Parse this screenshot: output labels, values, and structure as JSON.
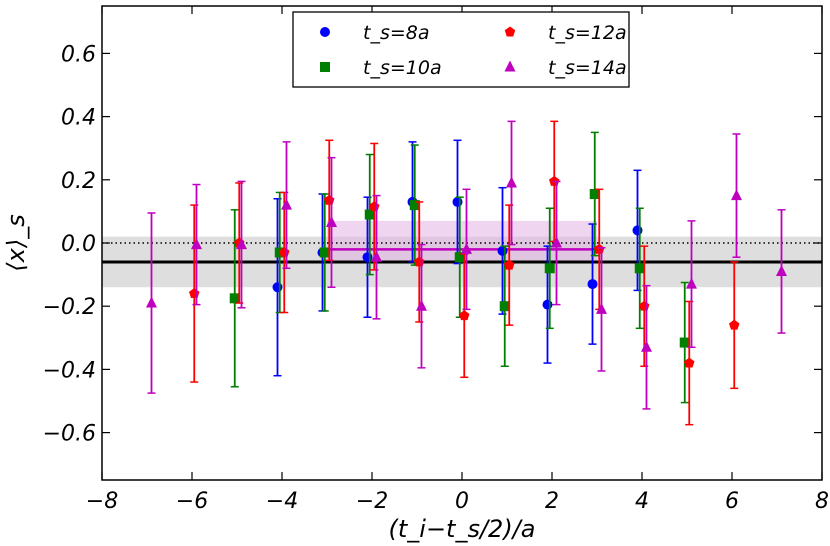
{
  "chart_data": {
    "type": "scatter",
    "title": "",
    "xlabel": "(t_i−t_s/2)/a",
    "ylabel": "⟨x⟩_s",
    "xlim": [
      -8,
      8
    ],
    "ylim": [
      -0.75,
      0.75
    ],
    "xticks": [
      -8,
      -6,
      -4,
      -2,
      0,
      2,
      4,
      6,
      8
    ],
    "xtick_labels": [
      "−8",
      "−6",
      "−4",
      "−2",
      "0",
      "2",
      "4",
      "6",
      "8"
    ],
    "yticks": [
      -0.6,
      -0.4,
      -0.2,
      0.0,
      0.2,
      0.4,
      0.6
    ],
    "ytick_labels": [
      "−0.6",
      "−0.4",
      "−0.2",
      "0.0",
      "0.2",
      "0.4",
      "0.6"
    ],
    "legend_position": "top-center",
    "reference_lines": [
      {
        "name": "zero",
        "y": 0.0,
        "style": "dotted"
      },
      {
        "name": "global-fit",
        "y": -0.06,
        "band": [
          -0.14,
          0.02
        ],
        "style": "solid"
      }
    ],
    "fit_band": {
      "name": "ts14-fit",
      "x": [
        -3,
        3
      ],
      "y": -0.02,
      "band": [
        -0.06,
        0.07
      ]
    },
    "series": [
      {
        "name": "ts8",
        "label": "t_s=8a",
        "color": "#0000ff",
        "marker": "circle",
        "x": [
          -4,
          -3,
          -2,
          -1,
          0,
          1,
          2,
          3,
          4
        ],
        "y": [
          -0.14,
          -0.03,
          -0.045,
          0.13,
          0.13,
          -0.025,
          -0.195,
          -0.13,
          0.04
        ],
        "yerr": [
          0.28,
          0.185,
          0.19,
          0.19,
          0.195,
          0.2,
          0.185,
          0.19,
          0.19
        ]
      },
      {
        "name": "ts10",
        "label": "t_s=10a",
        "color": "#007f00",
        "marker": "square",
        "x": [
          -5,
          -4,
          -3,
          -2,
          -1,
          0,
          1,
          2,
          3,
          4,
          5
        ],
        "y": [
          -0.175,
          -0.03,
          -0.03,
          0.09,
          0.12,
          -0.045,
          -0.2,
          -0.08,
          0.155,
          -0.08,
          -0.315
        ],
        "yerr": [
          0.28,
          0.19,
          0.185,
          0.19,
          0.19,
          0.19,
          0.19,
          0.19,
          0.195,
          0.19,
          0.19
        ]
      },
      {
        "name": "ts12",
        "label": "t_s=12a",
        "color": "#ff0000",
        "marker": "pentagon",
        "x": [
          -6,
          -5,
          -4,
          -3,
          -2,
          -1,
          0,
          1,
          2,
          3,
          4,
          5,
          6
        ],
        "y": [
          -0.16,
          0.0,
          -0.03,
          0.135,
          0.115,
          -0.06,
          -0.23,
          -0.07,
          0.195,
          -0.02,
          -0.2,
          -0.38,
          -0.26
        ],
        "yerr": [
          0.28,
          0.19,
          0.19,
          0.19,
          0.2,
          0.19,
          0.195,
          0.19,
          0.19,
          0.19,
          0.19,
          0.195,
          0.2
        ]
      },
      {
        "name": "ts14",
        "label": "t_s=14a",
        "color": "#bf00bf",
        "marker": "triangle",
        "x": [
          -7,
          -6,
          -5,
          -4,
          -3,
          -2,
          -1,
          0,
          1,
          2,
          3,
          4,
          5,
          6,
          7
        ],
        "y": [
          -0.19,
          -0.005,
          -0.005,
          0.12,
          0.065,
          -0.045,
          -0.2,
          -0.02,
          0.19,
          0.0,
          -0.21,
          -0.33,
          -0.13,
          0.15,
          -0.09
        ],
        "yerr": [
          0.285,
          0.19,
          0.2,
          0.2,
          0.205,
          0.195,
          0.195,
          0.19,
          0.195,
          0.195,
          0.195,
          0.195,
          0.2,
          0.195,
          0.195
        ]
      }
    ]
  }
}
